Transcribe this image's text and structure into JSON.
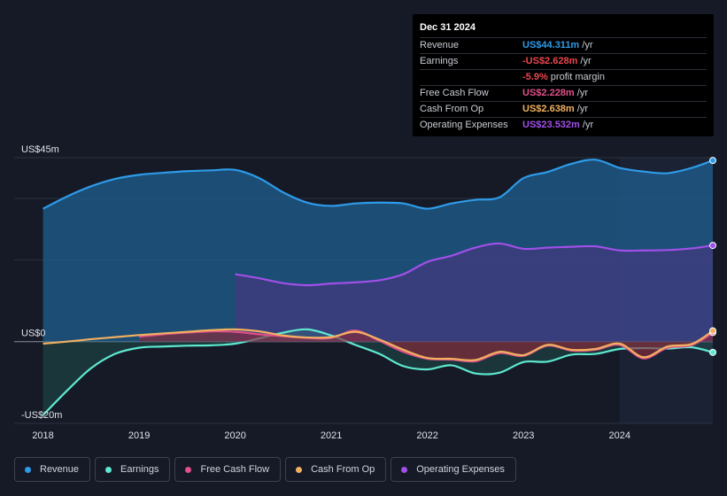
{
  "tooltip": {
    "date": "Dec 31 2024",
    "rows": [
      {
        "label": "Revenue",
        "value": "US$44.311m",
        "unit": "/yr",
        "color": "#2e9be8"
      },
      {
        "label": "Earnings",
        "value": "-US$2.628m",
        "unit": "/yr",
        "color": "#e8474f"
      },
      {
        "label": "",
        "value": "-5.9%",
        "unit": "profit margin",
        "color": "#e8474f"
      },
      {
        "label": "Free Cash Flow",
        "value": "US$2.228m",
        "unit": "/yr",
        "color": "#e0508a"
      },
      {
        "label": "Cash From Op",
        "value": "US$2.638m",
        "unit": "/yr",
        "color": "#f0b060"
      },
      {
        "label": "Operating Expenses",
        "value": "US$23.532m",
        "unit": "/yr",
        "color": "#a050e8"
      }
    ]
  },
  "legend": [
    {
      "label": "Revenue",
      "color": "#2e9be8"
    },
    {
      "label": "Earnings",
      "color": "#5ee8d0"
    },
    {
      "label": "Free Cash Flow",
      "color": "#e0508a"
    },
    {
      "label": "Cash From Op",
      "color": "#f0b060"
    },
    {
      "label": "Operating Expenses",
      "color": "#a050e8"
    }
  ],
  "chart_data": {
    "type": "area",
    "ylim": [
      -20,
      45
    ],
    "y_tick_labels": [
      {
        "label": "US$45m",
        "value": 45
      },
      {
        "label": "US$0",
        "value": 0
      },
      {
        "label": "-US$20m",
        "value": -20
      }
    ],
    "x_tick_labels": [
      "2018",
      "2019",
      "2020",
      "2021",
      "2022",
      "2023",
      "2024"
    ],
    "x_range": [
      2017.7,
      2024.97
    ],
    "highlight_start": 2024.0,
    "series": [
      {
        "name": "Revenue",
        "color": "#2e9be8",
        "fill": true,
        "points": [
          [
            2018.0,
            32.5
          ],
          [
            2018.25,
            35.5
          ],
          [
            2018.5,
            38.0
          ],
          [
            2018.75,
            39.8
          ],
          [
            2019.0,
            40.8
          ],
          [
            2019.25,
            41.3
          ],
          [
            2019.5,
            41.7
          ],
          [
            2019.75,
            41.9
          ],
          [
            2020.0,
            42.0
          ],
          [
            2020.25,
            40.0
          ],
          [
            2020.5,
            36.5
          ],
          [
            2020.75,
            34.0
          ],
          [
            2021.0,
            33.2
          ],
          [
            2021.25,
            33.8
          ],
          [
            2021.5,
            34.0
          ],
          [
            2021.75,
            33.8
          ],
          [
            2022.0,
            32.5
          ],
          [
            2022.25,
            33.8
          ],
          [
            2022.5,
            34.7
          ],
          [
            2022.75,
            35.3
          ],
          [
            2023.0,
            40.0
          ],
          [
            2023.25,
            41.5
          ],
          [
            2023.5,
            43.5
          ],
          [
            2023.75,
            44.5
          ],
          [
            2024.0,
            42.5
          ],
          [
            2024.25,
            41.6
          ],
          [
            2024.5,
            41.2
          ],
          [
            2024.75,
            42.5
          ],
          [
            2024.97,
            44.31
          ]
        ]
      },
      {
        "name": "Operating Expenses",
        "color": "#a050e8",
        "fill": true,
        "points": [
          [
            2020.0,
            16.5
          ],
          [
            2020.25,
            15.5
          ],
          [
            2020.5,
            14.3
          ],
          [
            2020.75,
            13.8
          ],
          [
            2021.0,
            14.2
          ],
          [
            2021.25,
            14.5
          ],
          [
            2021.5,
            15.0
          ],
          [
            2021.75,
            16.5
          ],
          [
            2022.0,
            19.5
          ],
          [
            2022.25,
            21.0
          ],
          [
            2022.5,
            23.0
          ],
          [
            2022.75,
            24.0
          ],
          [
            2023.0,
            22.7
          ],
          [
            2023.25,
            23.0
          ],
          [
            2023.5,
            23.2
          ],
          [
            2023.75,
            23.3
          ],
          [
            2024.0,
            22.3
          ],
          [
            2024.25,
            22.3
          ],
          [
            2024.5,
            22.4
          ],
          [
            2024.75,
            22.8
          ],
          [
            2024.97,
            23.53
          ]
        ]
      },
      {
        "name": "Earnings",
        "color": "#5ee8d0",
        "fill": true,
        "points": [
          [
            2018.0,
            -18.0
          ],
          [
            2018.25,
            -12.0
          ],
          [
            2018.5,
            -6.5
          ],
          [
            2018.75,
            -3.0
          ],
          [
            2019.0,
            -1.5
          ],
          [
            2019.25,
            -1.2
          ],
          [
            2019.5,
            -1.0
          ],
          [
            2019.75,
            -0.9
          ],
          [
            2020.0,
            -0.5
          ],
          [
            2020.25,
            0.8
          ],
          [
            2020.5,
            2.2
          ],
          [
            2020.75,
            3.0
          ],
          [
            2021.0,
            1.5
          ],
          [
            2021.25,
            -0.8
          ],
          [
            2021.5,
            -3.0
          ],
          [
            2021.75,
            -6.0
          ],
          [
            2022.0,
            -6.8
          ],
          [
            2022.25,
            -5.8
          ],
          [
            2022.5,
            -7.8
          ],
          [
            2022.75,
            -7.6
          ],
          [
            2023.0,
            -5.0
          ],
          [
            2023.25,
            -4.9
          ],
          [
            2023.5,
            -3.2
          ],
          [
            2023.75,
            -3.0
          ],
          [
            2024.0,
            -1.8
          ],
          [
            2024.25,
            -1.6
          ],
          [
            2024.5,
            -1.7
          ],
          [
            2024.75,
            -1.4
          ],
          [
            2024.97,
            -2.63
          ]
        ]
      },
      {
        "name": "Free Cash Flow",
        "color": "#e0508a",
        "fill": true,
        "points": [
          [
            2019.0,
            1.2
          ],
          [
            2019.25,
            1.8
          ],
          [
            2019.5,
            2.2
          ],
          [
            2019.75,
            2.5
          ],
          [
            2020.0,
            2.4
          ],
          [
            2020.25,
            1.8
          ],
          [
            2020.5,
            1.3
          ],
          [
            2020.75,
            0.9
          ],
          [
            2021.0,
            0.9
          ],
          [
            2021.25,
            2.7
          ],
          [
            2021.5,
            0.2
          ],
          [
            2021.75,
            -2.5
          ],
          [
            2022.0,
            -4.2
          ],
          [
            2022.25,
            -4.4
          ],
          [
            2022.5,
            -4.8
          ],
          [
            2022.75,
            -2.8
          ],
          [
            2023.0,
            -3.5
          ],
          [
            2023.25,
            -1.0
          ],
          [
            2023.5,
            -2.2
          ],
          [
            2023.75,
            -2.0
          ],
          [
            2024.0,
            -0.8
          ],
          [
            2024.25,
            -4.1
          ],
          [
            2024.5,
            -1.5
          ],
          [
            2024.75,
            -0.9
          ],
          [
            2024.97,
            2.23
          ]
        ]
      },
      {
        "name": "Cash From Op",
        "color": "#f0b060",
        "fill": false,
        "points": [
          [
            2018.0,
            -0.5
          ],
          [
            2018.25,
            0.0
          ],
          [
            2018.5,
            0.6
          ],
          [
            2018.75,
            1.1
          ],
          [
            2019.0,
            1.6
          ],
          [
            2019.25,
            2.0
          ],
          [
            2019.5,
            2.4
          ],
          [
            2019.75,
            2.8
          ],
          [
            2020.0,
            3.0
          ],
          [
            2020.25,
            2.5
          ],
          [
            2020.5,
            1.5
          ],
          [
            2020.75,
            1.0
          ],
          [
            2021.0,
            1.1
          ],
          [
            2021.25,
            2.4
          ],
          [
            2021.5,
            0.5
          ],
          [
            2021.75,
            -2.0
          ],
          [
            2022.0,
            -4.0
          ],
          [
            2022.25,
            -4.2
          ],
          [
            2022.5,
            -4.5
          ],
          [
            2022.75,
            -2.5
          ],
          [
            2023.0,
            -3.3
          ],
          [
            2023.25,
            -0.8
          ],
          [
            2023.5,
            -2.0
          ],
          [
            2023.75,
            -1.8
          ],
          [
            2024.0,
            -0.5
          ],
          [
            2024.25,
            -3.8
          ],
          [
            2024.5,
            -1.2
          ],
          [
            2024.75,
            -0.6
          ],
          [
            2024.97,
            2.64
          ]
        ]
      }
    ]
  }
}
